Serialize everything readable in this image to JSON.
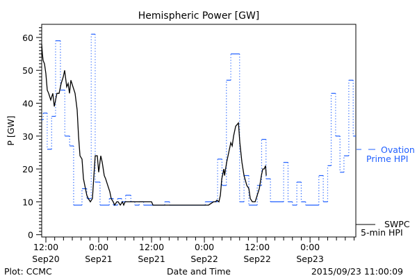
{
  "chart_data": {
    "type": "line",
    "title": "Hemispheric Power [GW]",
    "xlabel": "Date and Time",
    "ylabel": "P [GW]",
    "x_units": "hours since Sep20 00:00",
    "xlim": [
      11.05,
      82.4
    ],
    "ylim": [
      -0.7,
      64
    ],
    "yticks": [
      0,
      10,
      20,
      30,
      40,
      50,
      60
    ],
    "xticks": [
      {
        "x": 12,
        "time": "12:00",
        "date": "Sep20"
      },
      {
        "x": 24,
        "time": "0:00",
        "date": "Sep21"
      },
      {
        "x": 36,
        "time": "12:00",
        "date": "Sep21"
      },
      {
        "x": 48,
        "time": "0:00",
        "date": "Sep22"
      },
      {
        "x": 60,
        "time": "12:00",
        "date": "Sep22"
      },
      {
        "x": 72,
        "time": "0:00",
        "date": "Sep23"
      }
    ],
    "grid": false,
    "legend_placement": "right-outside",
    "series": [
      {
        "name": "Ovation Prime HPI",
        "color": "#1f5fff",
        "style": "step",
        "end": 82.4,
        "steps": [
          [
            11.05,
            35
          ],
          [
            11.4,
            37
          ],
          [
            12.3,
            26
          ],
          [
            13.3,
            36
          ],
          [
            14.2,
            59
          ],
          [
            15.3,
            44
          ],
          [
            16.3,
            30
          ],
          [
            17.4,
            27
          ],
          [
            18.3,
            9
          ],
          [
            20.2,
            14
          ],
          [
            21.3,
            11
          ],
          [
            22.3,
            61
          ],
          [
            23.2,
            16
          ],
          [
            24.3,
            9
          ],
          [
            26.4,
            11
          ],
          [
            27.3,
            9
          ],
          [
            28.3,
            11
          ],
          [
            29.2,
            10
          ],
          [
            30.1,
            12
          ],
          [
            31.3,
            10
          ],
          [
            32.2,
            9
          ],
          [
            33.2,
            10
          ],
          [
            34.2,
            9
          ],
          [
            39.0,
            10
          ],
          [
            40.1,
            9
          ],
          [
            48.2,
            10
          ],
          [
            51,
            23
          ],
          [
            52,
            15
          ],
          [
            53,
            47
          ],
          [
            54,
            55
          ],
          [
            56,
            10
          ],
          [
            57,
            18
          ],
          [
            58.1,
            9
          ],
          [
            60,
            15
          ],
          [
            61,
            29
          ],
          [
            62,
            17
          ],
          [
            63,
            10
          ],
          [
            66,
            22
          ],
          [
            67,
            10
          ],
          [
            68,
            9
          ],
          [
            69,
            16
          ],
          [
            70,
            10
          ],
          [
            71,
            9
          ],
          [
            74,
            18
          ],
          [
            75,
            10
          ],
          [
            76,
            21
          ],
          [
            76.8,
            43
          ],
          [
            77.8,
            30
          ],
          [
            78.8,
            19
          ],
          [
            79.7,
            24
          ],
          [
            80.8,
            47
          ],
          [
            81.8,
            30
          ]
        ]
      },
      {
        "name": "SWPC 5-min HPI",
        "color": "#000000",
        "style": "line",
        "points": [
          [
            11.05,
            58
          ],
          [
            11.2,
            55
          ],
          [
            11.37,
            53
          ],
          [
            11.68,
            52
          ],
          [
            12,
            49
          ],
          [
            12.32,
            44
          ],
          [
            12.63,
            43
          ],
          [
            13.1,
            41
          ],
          [
            13.58,
            43
          ],
          [
            13.9,
            39
          ],
          [
            14.2,
            41
          ],
          [
            14.5,
            43
          ],
          [
            15,
            43
          ],
          [
            15.47,
            46
          ],
          [
            15.95,
            48
          ],
          [
            16.26,
            50
          ],
          [
            16.74,
            45
          ],
          [
            17.05,
            46
          ],
          [
            17.37,
            43
          ],
          [
            17.68,
            47
          ],
          [
            18.16,
            45
          ],
          [
            18.63,
            43
          ],
          [
            19.1,
            38
          ],
          [
            19.42,
            30
          ],
          [
            19.74,
            24
          ],
          [
            20.2,
            23
          ],
          [
            20.53,
            17
          ],
          [
            20.84,
            15
          ],
          [
            21.3,
            12
          ],
          [
            21.63,
            11
          ],
          [
            22.1,
            10
          ],
          [
            22.58,
            11
          ],
          [
            22.9,
            18
          ],
          [
            23.2,
            24
          ],
          [
            23.68,
            24
          ],
          [
            24,
            19
          ],
          [
            24.47,
            24
          ],
          [
            24.8,
            22
          ],
          [
            25.26,
            18
          ],
          [
            25.58,
            17
          ],
          [
            26.05,
            15
          ],
          [
            26.53,
            13
          ],
          [
            26.84,
            11
          ],
          [
            27.3,
            10
          ],
          [
            27.63,
            9
          ],
          [
            28.1,
            10
          ],
          [
            28.42,
            10
          ],
          [
            28.9,
            9
          ],
          [
            29.37,
            10
          ],
          [
            29.68,
            9
          ],
          [
            30,
            10
          ],
          [
            30.79,
            10
          ],
          [
            36,
            10
          ],
          [
            36.32,
            9
          ],
          [
            48.95,
            9
          ],
          [
            50.05,
            10
          ],
          [
            50.53,
            10
          ],
          [
            50.84,
            10.5
          ],
          [
            51.3,
            10
          ],
          [
            51.63,
            12
          ],
          [
            51.95,
            17
          ],
          [
            52.42,
            20
          ],
          [
            52.58,
            18
          ],
          [
            53.05,
            22
          ],
          [
            53.53,
            25
          ],
          [
            54,
            28
          ],
          [
            54.32,
            27
          ],
          [
            54.63,
            30
          ],
          [
            55.1,
            33
          ],
          [
            55.74,
            34
          ],
          [
            56.05,
            28
          ],
          [
            56.53,
            22
          ],
          [
            57,
            18
          ],
          [
            57.63,
            15
          ],
          [
            58.1,
            14
          ],
          [
            58.42,
            11
          ],
          [
            58.9,
            10
          ],
          [
            59.53,
            10
          ],
          [
            60,
            12
          ],
          [
            60.47,
            14
          ],
          [
            60.95,
            18
          ],
          [
            61.26,
            20
          ],
          [
            61.58,
            20
          ],
          [
            61.9,
            21
          ],
          [
            62.05,
            18
          ]
        ]
      }
    ]
  },
  "legend": {
    "ovation_line1": "Ovation",
    "ovation_line2": "Prime HPI",
    "swpc_line1": "SWPC",
    "swpc_line2": "5-min HPI"
  },
  "footer": {
    "plot_credit": "Plot: CCMC",
    "timestamp": "2015/09/23 11:00:09"
  }
}
